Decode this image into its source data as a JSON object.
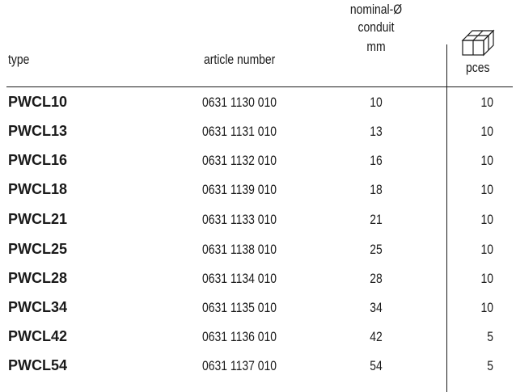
{
  "headers": {
    "type": "type",
    "article_number": "article number",
    "nominal_line1": "nominal-Ø",
    "nominal_line2": "conduit",
    "nominal_line3": "mm",
    "pces": "pces",
    "pces_icon": "box-stack-icon"
  },
  "rows": [
    {
      "type": "PWCL10",
      "article": "0631 1130 010",
      "nominal": "10",
      "pces": "10"
    },
    {
      "type": "PWCL13",
      "article": "0631 1131 010",
      "nominal": "13",
      "pces": "10"
    },
    {
      "type": "PWCL16",
      "article": "0631 1132 010",
      "nominal": "16",
      "pces": "10"
    },
    {
      "type": "PWCL18",
      "article": "0631 1139 010",
      "nominal": "18",
      "pces": "10"
    },
    {
      "type": "PWCL21",
      "article": "0631 1133 010",
      "nominal": "21",
      "pces": "10"
    },
    {
      "type": "PWCL25",
      "article": "0631 1138 010",
      "nominal": "25",
      "pces": "10"
    },
    {
      "type": "PWCL28",
      "article": "0631 1134 010",
      "nominal": "28",
      "pces": "10"
    },
    {
      "type": "PWCL34",
      "article": "0631 1135 010",
      "nominal": "34",
      "pces": "10"
    },
    {
      "type": "PWCL42",
      "article": "0631 1136 010",
      "nominal": "42",
      "pces": "5"
    },
    {
      "type": "PWCL54",
      "article": "0631 1137 010",
      "nominal": "54",
      "pces": "5"
    }
  ]
}
